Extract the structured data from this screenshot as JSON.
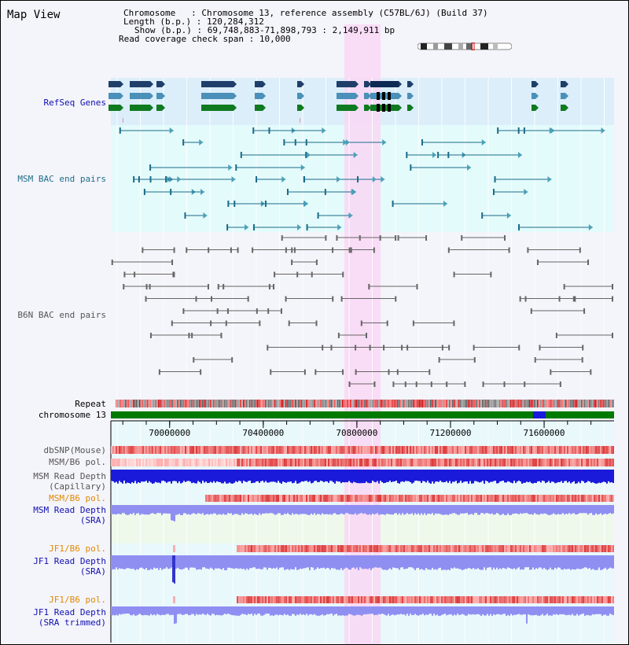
{
  "header": {
    "title": "Map View",
    "chromosome_label": "Chromosome",
    "chromosome_value": "Chromosome 13, reference assembly (C57BL/6J) (Build 37)",
    "length_label": "Length (b.p.)",
    "length_value": "120,284,312",
    "show_label": "Show (b.p.)",
    "show_value": "69,748,883-71,898,793 : 2,149,911 bp",
    "coverage_label": "Read coverage check span",
    "coverage_value": "10,000"
  },
  "tracks": {
    "refseq": "RefSeq Genes",
    "msm_bac": "MSM BAC end pairs",
    "b6n_bac": "B6N BAC end pairs",
    "repeat": "Repeat",
    "chromosome": "chromosome 13",
    "dbsnp": "dbSNP(Mouse)",
    "msm_b6_pol_1": "MSM/B6 pol.",
    "msm_read_depth_cap_1": "MSM Read Depth",
    "msm_read_depth_cap_2": "(Capillary)",
    "msm_b6_pol_2": "MSM/B6 pol.",
    "msm_read_depth_sra_1": "MSM Read Depth",
    "msm_read_depth_sra_2": "(SRA)",
    "jf1_b6_pol_1": "JF1/B6 pol.",
    "jf1_read_depth_sra_1": "JF1 Read Depth",
    "jf1_read_depth_sra_2": "(SRA)",
    "jf1_b6_pol_2": "JF1/B6 pol.",
    "jf1_read_depth_trim_1": "JF1 Read Depth",
    "jf1_read_depth_trim_2": "(SRA trimmed)"
  },
  "axis": {
    "ticks": [
      "70000000",
      "70400000",
      "70800000",
      "71200000",
      "71600000"
    ],
    "tick_values": [
      70000000,
      70400000,
      70800000,
      71200000,
      71600000
    ],
    "range": [
      69748883,
      71898793
    ]
  },
  "colors": {
    "refseq_bg": "#dbeefa",
    "msm_bg": "#e4fbfb",
    "highlight": "#f9d7f4",
    "msm_color": "#1a6b8a",
    "b6n_color": "#666666",
    "chrom_green": "#007a00",
    "depth_dark": "#1a1adb",
    "depth_light": "#8f8ff2",
    "label_blue": "#1010b0",
    "label_teal": "#1f6f8a",
    "label_gray": "#555555",
    "label_orange": "#e08a00"
  }
}
